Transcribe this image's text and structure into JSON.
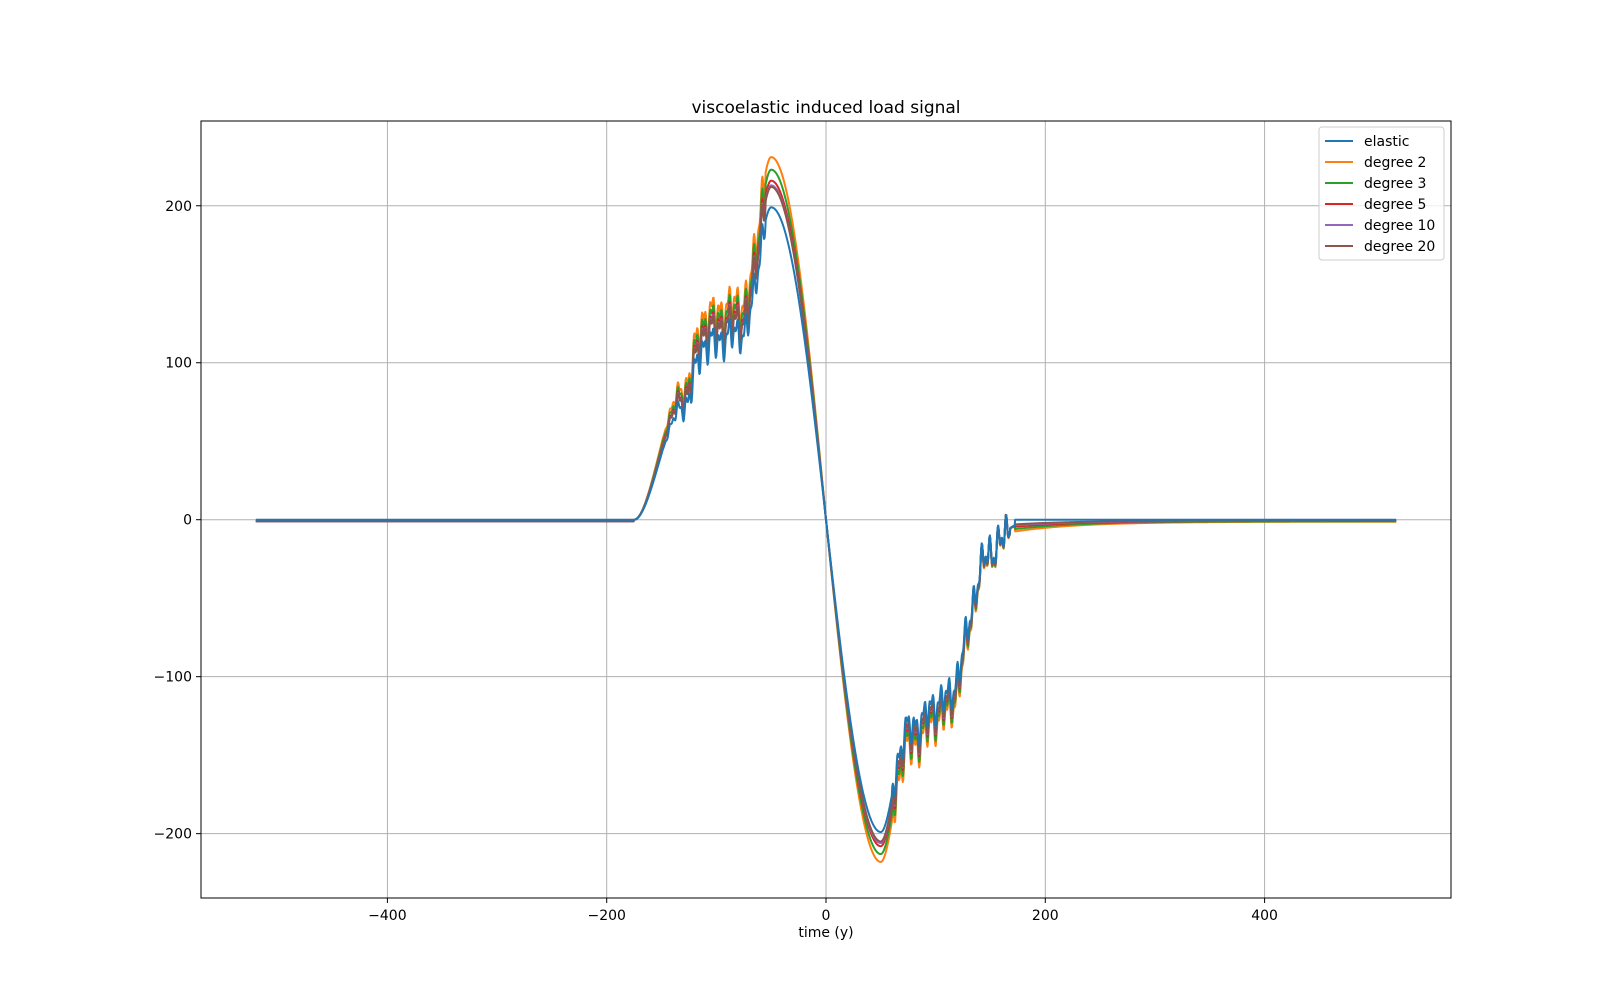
{
  "chart_data": {
    "type": "line",
    "title": "viscoelastic induced load signal",
    "xlabel": "time (y)",
    "ylabel": "",
    "xlim": [
      -570,
      570
    ],
    "ylim": [
      -241,
      254
    ],
    "xticks": [
      -400,
      -200,
      0,
      200,
      400
    ],
    "yticks": [
      -200,
      -100,
      0,
      100,
      200
    ],
    "xtick_labels": [
      "−400",
      "−200",
      "0",
      "200",
      "400"
    ],
    "ytick_labels": [
      "−200",
      "−100",
      "0",
      "100",
      "200"
    ],
    "grid": true,
    "legend_position": "top-right",
    "series": [
      {
        "name": "elastic",
        "color": "#1f77b4",
        "peak": 199,
        "trough": -199,
        "tail": 0
      },
      {
        "name": "degree 2",
        "color": "#ff7f0e",
        "peak": 231,
        "trough": -218,
        "tail": -2.5
      },
      {
        "name": "degree 3",
        "color": "#2ca02c",
        "peak": 223,
        "trough": -213,
        "tail": -2
      },
      {
        "name": "degree 5",
        "color": "#d62728",
        "peak": 216,
        "trough": -208,
        "tail": -1.5
      },
      {
        "name": "degree 10",
        "color": "#9467bd",
        "peak": 213,
        "trough": -206,
        "tail": -1.2
      },
      {
        "name": "degree 20",
        "color": "#8c564b",
        "peak": 212,
        "trough": -205,
        "tail": -1
      }
    ],
    "x_range": [
      -520,
      520
    ]
  }
}
